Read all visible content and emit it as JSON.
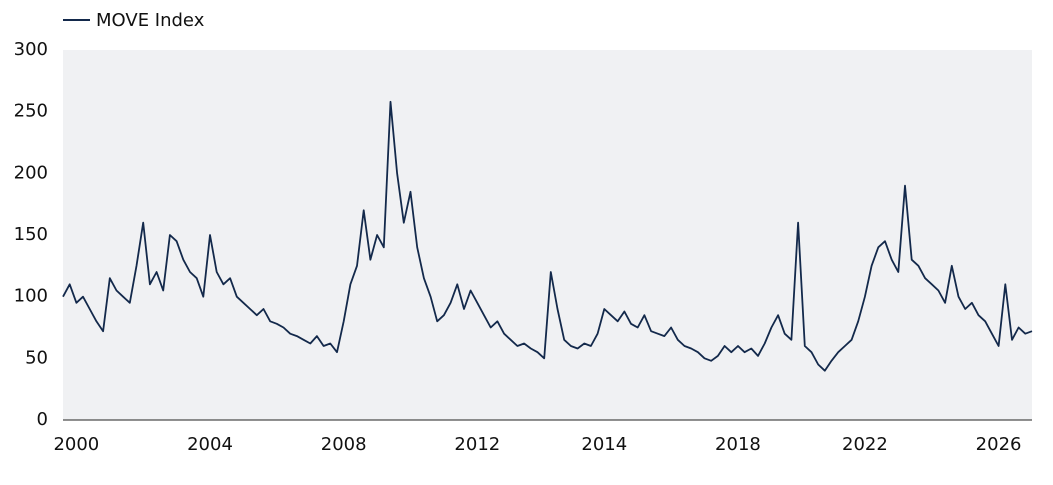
{
  "chart_data": {
    "type": "line",
    "categories": [
      null,
      null,
      "2000",
      null,
      null,
      null,
      null,
      null,
      null,
      null,
      null,
      null,
      null,
      null,
      null,
      null,
      null,
      null,
      null,
      null,
      null,
      null,
      "2004",
      null,
      null,
      null,
      null,
      null,
      null,
      null,
      null,
      null,
      null,
      null,
      null,
      null,
      null,
      null,
      null,
      null,
      null,
      null,
      "2008",
      null,
      null,
      null,
      null,
      null,
      null,
      null,
      null,
      null,
      null,
      null,
      null,
      null,
      null,
      null,
      null,
      null,
      null,
      null,
      "2012",
      null,
      null,
      null,
      null,
      null,
      null,
      null,
      null,
      null,
      null,
      null,
      null,
      null,
      null,
      null,
      null,
      null,
      null,
      "2014",
      null,
      null,
      null,
      null,
      null,
      null,
      null,
      null,
      null,
      null,
      null,
      null,
      null,
      null,
      null,
      null,
      null,
      null,
      null,
      "2018",
      null,
      null,
      null,
      null,
      null,
      null,
      null,
      null,
      null,
      null,
      null,
      null,
      null,
      null,
      null,
      null,
      null,
      null,
      "2022",
      null,
      null,
      null,
      null,
      null,
      null,
      null,
      null,
      null,
      null,
      null,
      null,
      null,
      null,
      null,
      null,
      null,
      null,
      null,
      "2026",
      null,
      null,
      null,
      null,
      null
    ],
    "series": [
      {
        "name": "MOVE Index",
        "color": "#13294b",
        "values": [
          100,
          110,
          95,
          100,
          90,
          80,
          72,
          115,
          105,
          100,
          95,
          125,
          160,
          110,
          120,
          105,
          150,
          145,
          130,
          120,
          115,
          100,
          150,
          120,
          110,
          115,
          100,
          95,
          90,
          85,
          90,
          80,
          78,
          75,
          70,
          68,
          65,
          62,
          68,
          60,
          62,
          55,
          80,
          110,
          125,
          170,
          130,
          150,
          140,
          258,
          200,
          160,
          185,
          140,
          115,
          100,
          80,
          85,
          95,
          110,
          90,
          105,
          95,
          85,
          75,
          80,
          70,
          65,
          60,
          62,
          58,
          55,
          50,
          120,
          90,
          65,
          60,
          58,
          62,
          60,
          70,
          90,
          85,
          80,
          88,
          78,
          75,
          85,
          72,
          70,
          68,
          75,
          65,
          60,
          58,
          55,
          50,
          48,
          52,
          60,
          55,
          60,
          55,
          58,
          52,
          62,
          75,
          85,
          70,
          65,
          160,
          60,
          55,
          45,
          40,
          48,
          55,
          60,
          65,
          80,
          100,
          125,
          140,
          145,
          130,
          120,
          190,
          130,
          125,
          115,
          110,
          105,
          95,
          125,
          100,
          90,
          95,
          85,
          80,
          70,
          60,
          110,
          65,
          75,
          70,
          72
        ]
      }
    ],
    "ylim": [
      0,
      300
    ],
    "yticks": [
      0,
      50,
      100,
      150,
      200,
      250,
      300
    ],
    "background": "#f0f1f3"
  }
}
